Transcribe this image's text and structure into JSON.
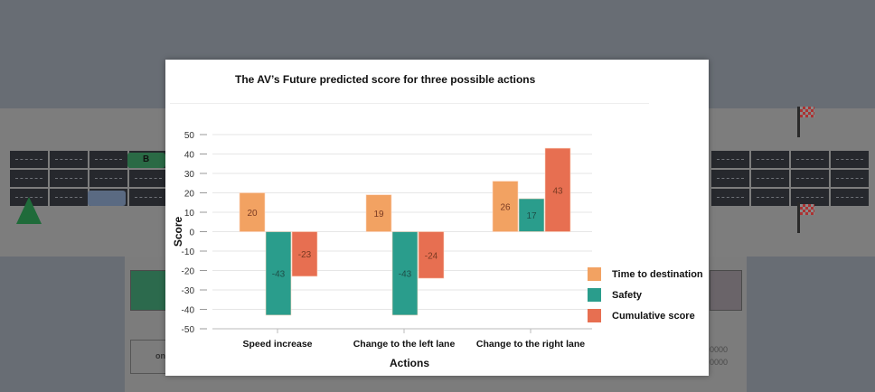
{
  "chart_data": {
    "type": "bar",
    "title": "The AV’s Future predicted score for three possible actions",
    "xlabel": "Actions",
    "ylabel": "Score",
    "ylim": [
      -50,
      50
    ],
    "yticks": [
      50,
      40,
      30,
      20,
      10,
      0,
      -10,
      -20,
      -30,
      -40,
      -50
    ],
    "categories": [
      "Speed increase",
      "Change to the left lane",
      "Change to the right lane"
    ],
    "series": [
      {
        "name": "Time to destination",
        "color": "#f2a262",
        "values": [
          20,
          19,
          26
        ]
      },
      {
        "name": "Safety",
        "color": "#2a9d8c",
        "values": [
          -43,
          -43,
          17
        ]
      },
      {
        "name": "Cumulative score",
        "color": "#e76f51",
        "values": [
          -23,
          -24,
          43
        ]
      }
    ],
    "grid": true,
    "legend_position": "bottom-right"
  },
  "background": {
    "panel_left_button_text": "on",
    "panel_right_text_1": "0000",
    "panel_right_text_2": "0000",
    "car_label": "B"
  }
}
